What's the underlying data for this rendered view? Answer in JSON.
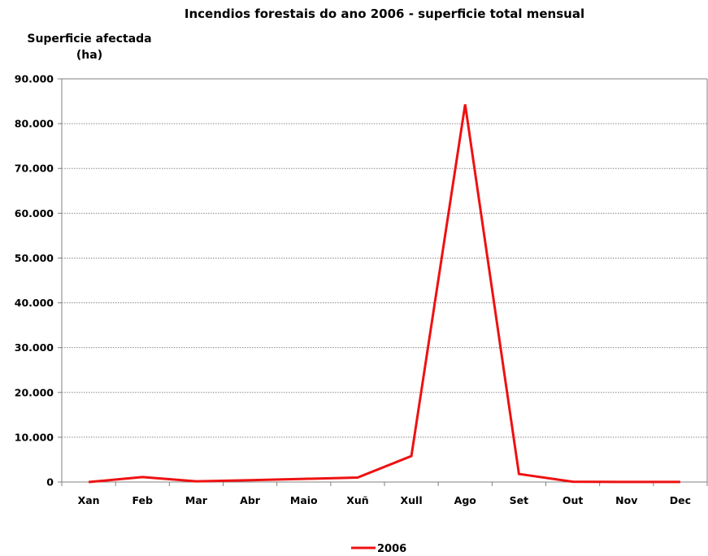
{
  "chart_data": {
    "type": "line",
    "title": "Incendios forestais do ano 2006 - superficie total mensual",
    "ylabel_lines": [
      "Superficie afectada",
      "(ha)"
    ],
    "xlabel": "",
    "categories": [
      "Xan",
      "Feb",
      "Mar",
      "Abr",
      "Maio",
      "Xuñ",
      "Xull",
      "Ago",
      "Set",
      "Out",
      "Nov",
      "Dec"
    ],
    "series": [
      {
        "name": "2006",
        "color": "#ee1111",
        "values": [
          0,
          1100,
          150,
          400,
          700,
          1000,
          5800,
          84300,
          1800,
          60,
          30,
          20
        ]
      }
    ],
    "ylim": [
      0,
      90000
    ],
    "yticks": [
      0,
      10000,
      20000,
      30000,
      40000,
      50000,
      60000,
      70000,
      80000,
      90000
    ],
    "ytick_labels": [
      "0",
      "10.000",
      "20.000",
      "30.000",
      "40.000",
      "50.000",
      "60.000",
      "70.000",
      "80.000",
      "90.000"
    ],
    "grid": true,
    "legend_position": "bottom-center"
  }
}
